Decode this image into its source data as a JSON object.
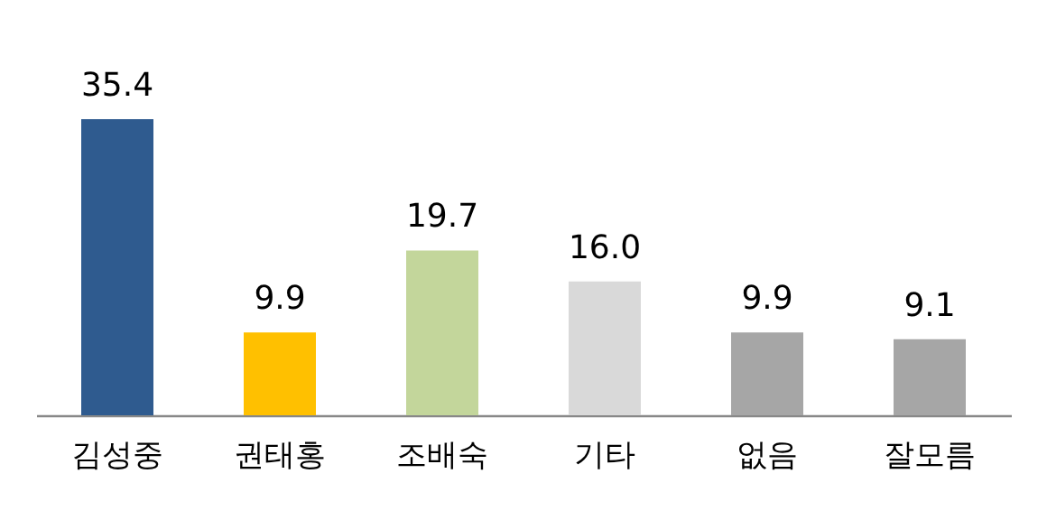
{
  "chart_data": {
    "type": "bar",
    "categories": [
      "김성중",
      "권태홍",
      "조배숙",
      "기타",
      "없음",
      "잘모름"
    ],
    "values": [
      35.4,
      9.9,
      19.7,
      16.0,
      9.9,
      9.1
    ],
    "value_labels": [
      "35.4",
      "9.9",
      "19.7",
      "16.0",
      "9.9",
      "9.1"
    ],
    "colors": [
      "#2f5b8f",
      "#ffc000",
      "#c3d69b",
      "#d9d9d9",
      "#a6a6a6",
      "#a6a6a6"
    ]
  }
}
